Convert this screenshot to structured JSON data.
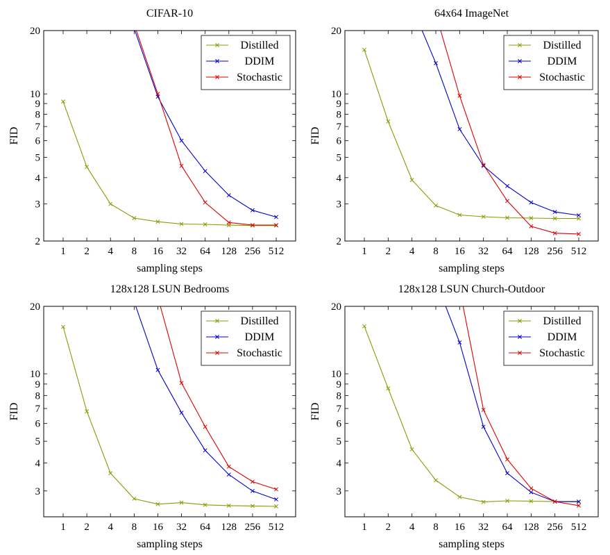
{
  "colors": {
    "distilled": "#8c9900",
    "ddim": "#0000c8",
    "stochastic": "#dc0000",
    "axis": "#000000"
  },
  "chart_data": [
    {
      "type": "line",
      "title": "CIFAR-10",
      "xlabel": "sampling steps",
      "ylabel": "FID",
      "x": [
        1,
        2,
        4,
        8,
        16,
        32,
        64,
        128,
        256,
        512
      ],
      "x_tick_labels": [
        "1",
        "2",
        "4",
        "8",
        "16",
        "32",
        "64",
        "128",
        "256",
        "512"
      ],
      "y_scale": "log",
      "ylim": [
        2,
        20
      ],
      "y_ticks": [
        2,
        3,
        4,
        5,
        6,
        7,
        8,
        9,
        10,
        20
      ],
      "y_tick_labels": [
        "2",
        "3",
        "4",
        "5",
        "6",
        "7",
        "8",
        "9",
        "10",
        "20"
      ],
      "legend_position": "top-right",
      "series": [
        {
          "name": "Distilled",
          "color": "#8c9900",
          "values": [
            9.2,
            4.5,
            3.0,
            2.57,
            2.47,
            2.41,
            2.4,
            2.38,
            2.37,
            2.37
          ]
        },
        {
          "name": "DDIM",
          "color": "#0000c8",
          "values": [
            null,
            null,
            null,
            20.5,
            9.7,
            6.0,
            4.3,
            3.3,
            2.8,
            2.6
          ]
        },
        {
          "name": "Stochastic",
          "color": "#dc0000",
          "values": [
            null,
            null,
            null,
            21.5,
            10.0,
            4.55,
            3.05,
            2.45,
            2.38,
            2.38
          ]
        }
      ]
    },
    {
      "type": "line",
      "title": "64x64 ImageNet",
      "xlabel": "sampling steps",
      "ylabel": "FID",
      "x": [
        1,
        2,
        4,
        8,
        16,
        32,
        64,
        128,
        256,
        512
      ],
      "x_tick_labels": [
        "1",
        "2",
        "4",
        "8",
        "16",
        "32",
        "64",
        "128",
        "256",
        "512"
      ],
      "y_scale": "log",
      "ylim": [
        2,
        20
      ],
      "y_ticks": [
        2,
        3,
        4,
        5,
        6,
        7,
        8,
        9,
        10,
        20
      ],
      "y_tick_labels": [
        "2",
        "3",
        "4",
        "5",
        "6",
        "7",
        "8",
        "9",
        "10",
        "20"
      ],
      "legend_position": "top-right",
      "series": [
        {
          "name": "Distilled",
          "color": "#8c9900",
          "values": [
            16.2,
            7.4,
            3.9,
            2.95,
            2.66,
            2.61,
            2.58,
            2.57,
            2.56,
            2.56
          ]
        },
        {
          "name": "DDIM",
          "color": "#0000c8",
          "values": [
            null,
            null,
            26.0,
            14.0,
            6.8,
            4.55,
            3.65,
            3.05,
            2.75,
            2.65
          ]
        },
        {
          "name": "Stochastic",
          "color": "#dc0000",
          "values": [
            null,
            null,
            null,
            24.0,
            9.8,
            4.6,
            3.1,
            2.35,
            2.18,
            2.16
          ]
        }
      ]
    },
    {
      "type": "line",
      "title": "128x128 LSUN Bedrooms",
      "xlabel": "sampling steps",
      "ylabel": "FID",
      "x": [
        1,
        2,
        4,
        8,
        16,
        32,
        64,
        128,
        256,
        512
      ],
      "x_tick_labels": [
        "1",
        "2",
        "4",
        "8",
        "16",
        "32",
        "64",
        "128",
        "256",
        "512"
      ],
      "y_scale": "log",
      "ylim": [
        2.3,
        20
      ],
      "y_ticks": [
        3,
        4,
        5,
        6,
        7,
        8,
        9,
        10,
        20
      ],
      "y_tick_labels": [
        "3",
        "4",
        "5",
        "6",
        "7",
        "8",
        "9",
        "10",
        "20"
      ],
      "legend_position": "top-right",
      "series": [
        {
          "name": "Distilled",
          "color": "#8c9900",
          "values": [
            16.2,
            6.8,
            3.6,
            2.77,
            2.62,
            2.66,
            2.6,
            2.58,
            2.57,
            2.56
          ]
        },
        {
          "name": "DDIM",
          "color": "#0000c8",
          "values": [
            null,
            null,
            null,
            21.0,
            10.4,
            6.7,
            4.55,
            3.55,
            3.0,
            2.75
          ]
        },
        {
          "name": "Stochastic",
          "color": "#dc0000",
          "values": [
            null,
            null,
            null,
            null,
            22.0,
            9.1,
            5.8,
            3.85,
            3.3,
            3.05
          ]
        }
      ]
    },
    {
      "type": "line",
      "title": "128x128 LSUN Church-Outdoor",
      "xlabel": "sampling steps",
      "ylabel": "FID",
      "x": [
        1,
        2,
        4,
        8,
        16,
        32,
        64,
        128,
        256,
        512
      ],
      "x_tick_labels": [
        "1",
        "2",
        "4",
        "8",
        "16",
        "32",
        "64",
        "128",
        "256",
        "512"
      ],
      "y_scale": "log",
      "ylim": [
        2.3,
        20
      ],
      "y_ticks": [
        3,
        4,
        5,
        6,
        7,
        8,
        9,
        10,
        20
      ],
      "y_tick_labels": [
        "3",
        "4",
        "5",
        "6",
        "7",
        "8",
        "9",
        "10",
        "20"
      ],
      "legend_position": "top-right",
      "series": [
        {
          "name": "Distilled",
          "color": "#8c9900",
          "values": [
            16.3,
            8.6,
            4.6,
            3.35,
            2.82,
            2.68,
            2.71,
            2.7,
            2.69,
            2.68
          ]
        },
        {
          "name": "DDIM",
          "color": "#0000c8",
          "values": [
            null,
            null,
            null,
            26.0,
            13.8,
            5.8,
            3.6,
            2.96,
            2.69,
            2.69
          ]
        },
        {
          "name": "Stochastic",
          "color": "#dc0000",
          "values": [
            null,
            null,
            null,
            null,
            24.0,
            6.9,
            4.15,
            3.08,
            2.69,
            2.58
          ]
        }
      ]
    }
  ]
}
